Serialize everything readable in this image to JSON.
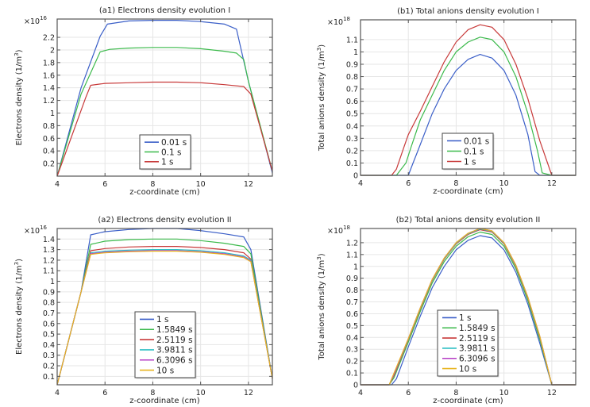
{
  "chart_data": [
    {
      "id": "a1",
      "type": "line",
      "title": "(a1) Electrons density evolution I",
      "xlabel": "z-coordinate (cm)",
      "ylabel": "Electrons density (1/m³)",
      "ylabel_base": "Electrons density (1/m",
      "ylabel_exp": "3",
      "ylabel_end": ")",
      "multiplier": "×10",
      "multiplier_exp": "16",
      "xlim": [
        4,
        13
      ],
      "ylim": [
        0,
        2.49
      ],
      "xticks": [
        4,
        6,
        8,
        10,
        12
      ],
      "yticks": [
        0.2,
        0.4,
        0.6,
        0.8,
        1,
        1.2,
        1.4,
        1.6,
        1.8,
        2,
        2.2
      ],
      "grid": true,
      "legend_position": "bottom-center",
      "series": [
        {
          "name": "0.01 s",
          "color": "#3b5fc8",
          "x": [
            4,
            5,
            5.8,
            6.1,
            7,
            8,
            9,
            10,
            11,
            11.5,
            12,
            13
          ],
          "y": [
            0,
            1.4,
            2.22,
            2.41,
            2.46,
            2.47,
            2.47,
            2.45,
            2.41,
            2.33,
            1.5,
            0.05
          ]
        },
        {
          "name": "0.1 s",
          "color": "#3cba4c",
          "x": [
            4,
            5,
            5.8,
            6.2,
            7,
            8,
            9,
            10,
            11,
            11.5,
            11.8,
            12,
            13
          ],
          "y": [
            0,
            1.3,
            1.97,
            2.01,
            2.03,
            2.04,
            2.04,
            2.02,
            1.98,
            1.95,
            1.85,
            1.5,
            0.08
          ]
        },
        {
          "name": "1 s",
          "color": "#c83a3a",
          "x": [
            4,
            5.2,
            5.4,
            6,
            7,
            8,
            9,
            10,
            11,
            11.8,
            12.1,
            13
          ],
          "y": [
            0,
            1.25,
            1.44,
            1.47,
            1.48,
            1.49,
            1.49,
            1.48,
            1.45,
            1.42,
            1.3,
            0.08
          ]
        }
      ]
    },
    {
      "id": "b1",
      "type": "line",
      "title": "(b1) Total anions density evolution I",
      "xlabel": "z-coordinate (cm)",
      "ylabel": "Total anions density (1/m³)",
      "ylabel_base": "Total anions density (1/m",
      "ylabel_exp": "3",
      "ylabel_end": ")",
      "multiplier": "×10",
      "multiplier_exp": "18",
      "xlim": [
        4,
        13
      ],
      "ylim": [
        0,
        1.26
      ],
      "xticks": [
        4,
        6,
        8,
        10,
        12
      ],
      "yticks": [
        0,
        0.1,
        0.2,
        0.3,
        0.4,
        0.5,
        0.6,
        0.7,
        0.8,
        0.9,
        1,
        1.1
      ],
      "grid": true,
      "legend_position": "bottom-center",
      "series": [
        {
          "name": "0.01 s",
          "color": "#3b5fc8",
          "x": [
            4,
            6,
            6.2,
            6.4,
            7,
            7.5,
            8,
            8.5,
            9,
            9.5,
            10,
            10.5,
            11,
            11.3,
            11.5,
            12,
            13
          ],
          "y": [
            0,
            0,
            0.1,
            0.2,
            0.5,
            0.7,
            0.85,
            0.94,
            0.98,
            0.95,
            0.85,
            0.65,
            0.33,
            0.03,
            0,
            0,
            0
          ]
        },
        {
          "name": "0.1 s",
          "color": "#3cba4c",
          "x": [
            4,
            5.5,
            5.9,
            6.1,
            6.5,
            7,
            7.5,
            8,
            8.5,
            9,
            9.5,
            10,
            10.5,
            11,
            11.4,
            11.6,
            12,
            13
          ],
          "y": [
            0,
            0,
            0.1,
            0.22,
            0.45,
            0.65,
            0.85,
            1.0,
            1.08,
            1.12,
            1.1,
            1.0,
            0.8,
            0.5,
            0.2,
            0.02,
            0,
            0
          ]
        },
        {
          "name": "1 s",
          "color": "#c83a3a",
          "x": [
            4,
            5.3,
            5.5,
            5.8,
            6,
            6.5,
            7,
            7.5,
            8,
            8.5,
            9,
            9.5,
            10,
            10.5,
            11,
            11.5,
            12,
            13
          ],
          "y": [
            0,
            0,
            0.05,
            0.22,
            0.33,
            0.52,
            0.72,
            0.92,
            1.08,
            1.18,
            1.22,
            1.2,
            1.1,
            0.9,
            0.62,
            0.28,
            0,
            0
          ]
        }
      ]
    },
    {
      "id": "a2",
      "type": "line",
      "title": "(a2) Electrons density evolution II",
      "xlabel": "z-coordinate (cm)",
      "ylabel": "Electrons density (1/m³)",
      "ylabel_base": "Electrons density (1/m",
      "ylabel_exp": "3",
      "ylabel_end": ")",
      "multiplier": "×10",
      "multiplier_exp": "16",
      "xlim": [
        4,
        13
      ],
      "ylim": [
        0.02,
        1.5
      ],
      "xticks": [
        4,
        6,
        8,
        10,
        12
      ],
      "yticks": [
        0.1,
        0.2,
        0.3,
        0.4,
        0.5,
        0.6,
        0.7,
        0.8,
        0.9,
        1,
        1.1,
        1.2,
        1.3,
        1.4
      ],
      "grid": true,
      "legend_position": "bottom-center",
      "series": [
        {
          "name": "1 s",
          "color": "#3b5fc8",
          "x": [
            4,
            5,
            5.4,
            6,
            7,
            8,
            9,
            10,
            11,
            11.8,
            12.1,
            13
          ],
          "y": [
            0.02,
            0.9,
            1.44,
            1.47,
            1.49,
            1.5,
            1.5,
            1.48,
            1.45,
            1.42,
            1.3,
            0.08
          ]
        },
        {
          "name": "1.5849 s",
          "color": "#3cba4c",
          "x": [
            4,
            5,
            5.4,
            6,
            7,
            8,
            9,
            10,
            11,
            11.8,
            12.1,
            13
          ],
          "y": [
            0.02,
            0.9,
            1.35,
            1.38,
            1.395,
            1.4,
            1.4,
            1.385,
            1.36,
            1.33,
            1.26,
            0.08
          ]
        },
        {
          "name": "2.5119 s",
          "color": "#c83a3a",
          "x": [
            4,
            5,
            5.4,
            6,
            7,
            8,
            9,
            10,
            11,
            11.8,
            12.1,
            13
          ],
          "y": [
            0.02,
            0.9,
            1.29,
            1.31,
            1.325,
            1.33,
            1.33,
            1.32,
            1.3,
            1.27,
            1.21,
            0.08
          ]
        },
        {
          "name": "3.9811 s",
          "color": "#2fbfc4",
          "x": [
            4,
            5,
            5.4,
            6,
            7,
            8,
            9,
            10,
            11,
            11.8,
            12.1,
            13
          ],
          "y": [
            0.02,
            0.9,
            1.27,
            1.285,
            1.295,
            1.3,
            1.3,
            1.29,
            1.27,
            1.24,
            1.2,
            0.08
          ]
        },
        {
          "name": "6.3096 s",
          "color": "#b63cc4",
          "x": [
            4,
            5,
            5.4,
            6,
            7,
            8,
            9,
            10,
            11,
            11.8,
            12.1,
            13
          ],
          "y": [
            0.02,
            0.9,
            1.26,
            1.275,
            1.285,
            1.29,
            1.29,
            1.28,
            1.26,
            1.23,
            1.19,
            0.08
          ]
        },
        {
          "name": "10 s",
          "color": "#e8b420",
          "x": [
            4,
            5,
            5.4,
            6,
            7,
            8,
            9,
            10,
            11,
            11.8,
            12.1,
            13
          ],
          "y": [
            0.02,
            0.9,
            1.255,
            1.27,
            1.28,
            1.285,
            1.285,
            1.275,
            1.255,
            1.225,
            1.185,
            0.08
          ]
        }
      ]
    },
    {
      "id": "b2",
      "type": "line",
      "title": "(b2) Total anions density evolution II",
      "xlabel": "z-coordinate (cm)",
      "ylabel": "Total anions density (1/m³)",
      "ylabel_base": "Total anions density (1/m",
      "ylabel_exp": "3",
      "ylabel_end": ")",
      "multiplier": "×10",
      "multiplier_exp": "18",
      "xlim": [
        4,
        13
      ],
      "ylim": [
        0,
        1.32
      ],
      "xticks": [
        4,
        6,
        8,
        10,
        12
      ],
      "yticks": [
        0,
        0.1,
        0.2,
        0.3,
        0.4,
        0.5,
        0.6,
        0.7,
        0.8,
        0.9,
        1,
        1.1,
        1.2
      ],
      "grid": true,
      "legend_position": "bottom-center",
      "series": [
        {
          "name": "1 s",
          "color": "#3b5fc8",
          "x": [
            4,
            5.3,
            5.5,
            6,
            6.5,
            7,
            7.5,
            8,
            8.5,
            9,
            9.5,
            10,
            10.5,
            11,
            11.5,
            12,
            13
          ],
          "y": [
            0,
            0,
            0.05,
            0.32,
            0.58,
            0.82,
            1.0,
            1.14,
            1.22,
            1.26,
            1.24,
            1.14,
            0.95,
            0.68,
            0.35,
            0,
            0
          ]
        },
        {
          "name": "1.5849 s",
          "color": "#3cba4c",
          "x": [
            4,
            5.2,
            5.4,
            6,
            6.5,
            7,
            7.5,
            8,
            8.5,
            9,
            9.5,
            10,
            10.5,
            11,
            11.5,
            12,
            13
          ],
          "y": [
            0,
            0,
            0.06,
            0.36,
            0.62,
            0.86,
            1.04,
            1.17,
            1.25,
            1.29,
            1.27,
            1.17,
            0.98,
            0.71,
            0.38,
            0,
            0
          ]
        },
        {
          "name": "2.5119 s",
          "color": "#c83a3a",
          "x": [
            4,
            5.2,
            5.4,
            6,
            6.5,
            7,
            7.5,
            8,
            8.5,
            9,
            9.5,
            10,
            10.5,
            11,
            11.5,
            12,
            13
          ],
          "y": [
            0,
            0,
            0.08,
            0.38,
            0.64,
            0.88,
            1.06,
            1.19,
            1.27,
            1.31,
            1.29,
            1.19,
            1.0,
            0.73,
            0.4,
            0,
            0
          ]
        },
        {
          "name": "3.9811 s",
          "color": "#2fbfc4",
          "x": [
            4,
            5.2,
            5.4,
            6,
            6.5,
            7,
            7.5,
            8,
            8.5,
            9,
            9.5,
            10,
            10.5,
            11,
            11.5,
            12,
            13
          ],
          "y": [
            0,
            0,
            0.09,
            0.385,
            0.645,
            0.885,
            1.065,
            1.195,
            1.275,
            1.315,
            1.295,
            1.195,
            1.005,
            0.735,
            0.405,
            0,
            0
          ]
        },
        {
          "name": "6.3096 s",
          "color": "#b63cc4",
          "x": [
            4,
            5.2,
            5.4,
            6,
            6.5,
            7,
            7.5,
            8,
            8.5,
            9,
            9.5,
            10,
            10.5,
            11,
            11.5,
            12,
            13
          ],
          "y": [
            0,
            0,
            0.09,
            0.39,
            0.65,
            0.89,
            1.07,
            1.2,
            1.28,
            1.32,
            1.3,
            1.2,
            1.01,
            0.74,
            0.41,
            0,
            0
          ]
        },
        {
          "name": "10 s",
          "color": "#e8b420",
          "x": [
            4,
            5.2,
            5.4,
            6,
            6.5,
            7,
            7.5,
            8,
            8.5,
            9,
            9.5,
            10,
            10.5,
            11,
            11.5,
            12,
            13
          ],
          "y": [
            0,
            0,
            0.1,
            0.39,
            0.65,
            0.89,
            1.07,
            1.2,
            1.28,
            1.32,
            1.3,
            1.2,
            1.01,
            0.74,
            0.41,
            0,
            0
          ]
        }
      ]
    }
  ]
}
